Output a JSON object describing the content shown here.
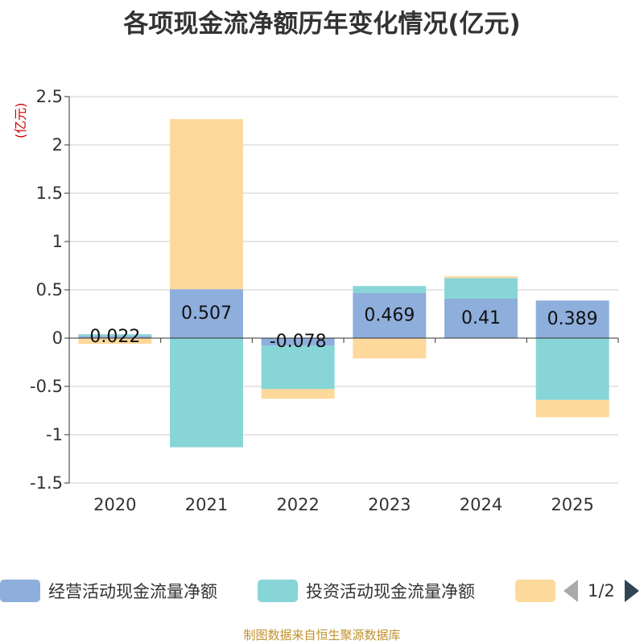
{
  "title": "各项现金流净额历年变化情况(亿元)",
  "unit_label": "(亿元)",
  "source": "制图数据来自恒生聚源数据库",
  "pager": {
    "text": "1/2"
  },
  "legend": [
    {
      "label": "经营活动现金流量净额",
      "color": "#8eaedb"
    },
    {
      "label": "投资活动现金流量净额",
      "color": "#88d5d8"
    },
    {
      "label": "",
      "color": "#fdd99b"
    }
  ],
  "chart_data": {
    "type": "bar",
    "stacked": true,
    "title": "各项现金流净额历年变化情况(亿元)",
    "ylabel": "(亿元)",
    "ylim": [
      -1.5,
      2.5
    ],
    "yticks": [
      2.5,
      2,
      1.5,
      1,
      0.5,
      0,
      -0.5,
      -1,
      -1.5
    ],
    "ytick_labels": [
      "2.5",
      "2",
      "1.5",
      "1",
      "0.5",
      "0",
      "-0.5",
      "-1",
      "-1.5"
    ],
    "categories": [
      "2020",
      "2021",
      "2022",
      "2023",
      "2024",
      "2025"
    ],
    "series": [
      {
        "name": "经营活动现金流量净额",
        "color": "#8eaedb",
        "values": [
          0.022,
          0.507,
          -0.078,
          0.469,
          0.41,
          0.389
        ],
        "labels": [
          "0.022",
          "0.507",
          "-0.078",
          "0.469",
          "0.41",
          "0.389"
        ]
      },
      {
        "name": "投资活动现金流量净额",
        "color": "#88d5d8",
        "values": [
          0.018,
          -1.13,
          -0.45,
          0.07,
          0.21,
          -0.64
        ]
      },
      {
        "name": "",
        "color": "#fdd99b",
        "values": [
          -0.06,
          1.76,
          -0.1,
          -0.21,
          0.02,
          -0.18
        ]
      }
    ]
  }
}
